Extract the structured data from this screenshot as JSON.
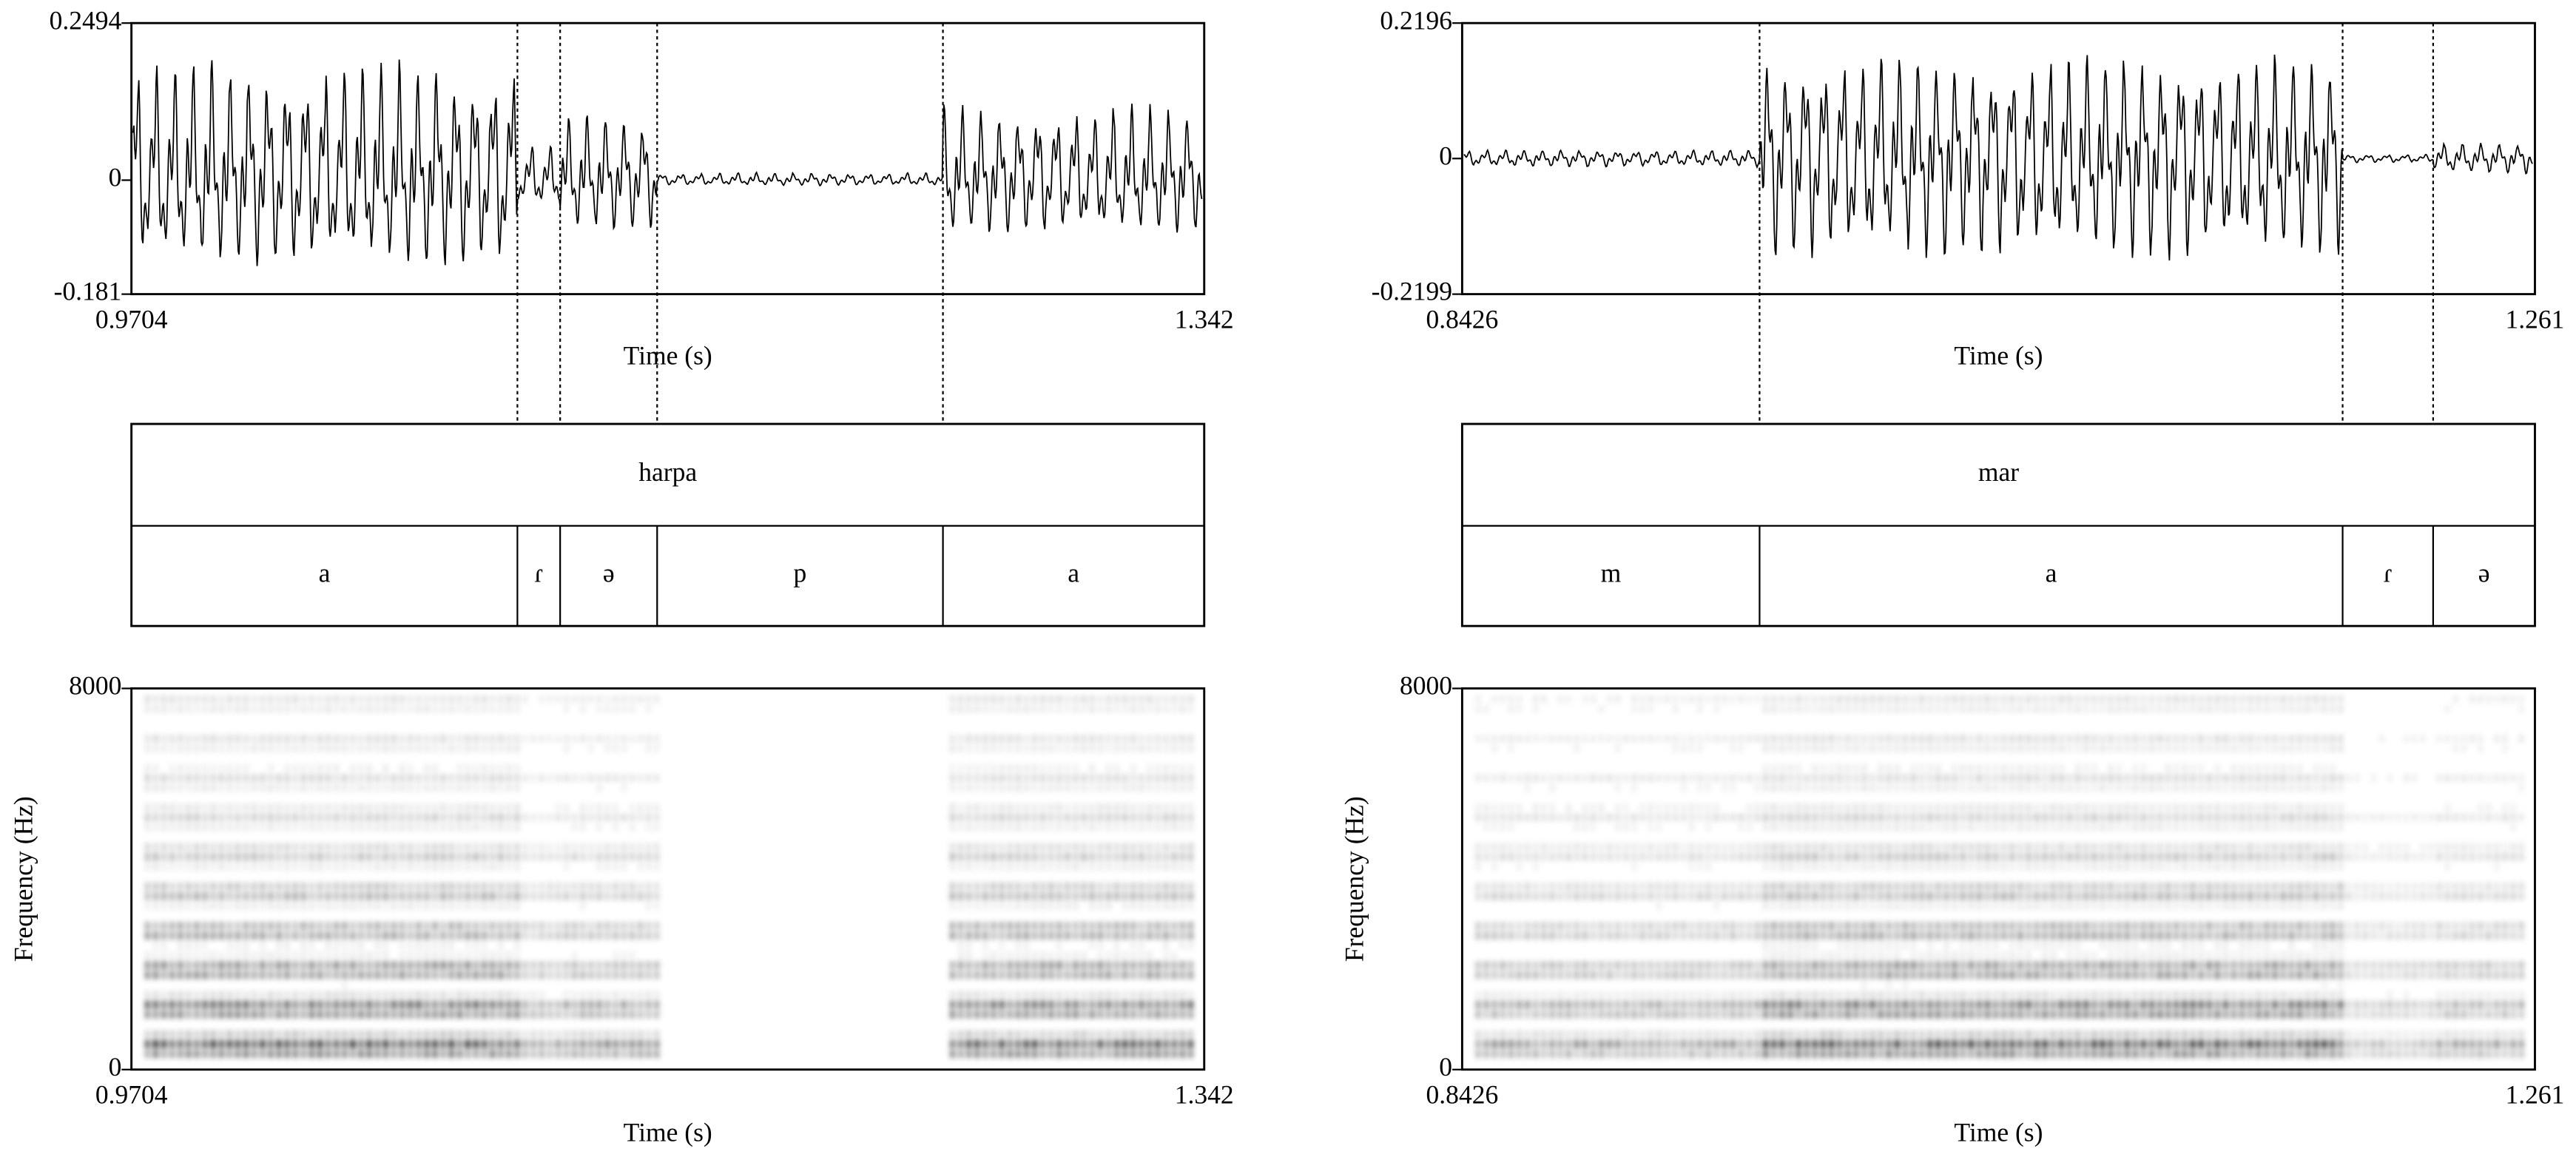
{
  "chart_data": [
    {
      "type": "waveform",
      "xlabel": "Time (s)",
      "xlim": [
        0.9704,
        1.342
      ],
      "xticks": [
        0.9704,
        1.342
      ],
      "ylim": [
        -0.181,
        0.2494
      ],
      "yticks": [
        -0.181,
        0,
        0.2494
      ],
      "boundaries": [
        1.1041,
        1.1189,
        1.1525,
        1.2515
      ],
      "tiers": [
        {
          "labels": [
            "harpa"
          ]
        },
        {
          "labels": [
            "a",
            "ɾ",
            "ə",
            "p",
            "a"
          ]
        }
      ],
      "spectrogram": {
        "ylabel": "Frequency (Hz)",
        "ylim": [
          0,
          8000
        ],
        "yticks": [
          0,
          8000
        ],
        "xlabel": "Time (s)",
        "xticks": [
          0.9704,
          1.342
        ]
      }
    },
    {
      "type": "waveform",
      "xlabel": "Time (s)",
      "xlim": [
        0.8426,
        1.261
      ],
      "xticks": [
        0.8426,
        1.261
      ],
      "ylim": [
        -0.2199,
        0.2196
      ],
      "yticks": [
        -0.2199,
        0,
        0.2196
      ],
      "boundaries": [
        0.9586,
        1.186,
        1.2213
      ],
      "tiers": [
        {
          "labels": [
            "mar"
          ]
        },
        {
          "labels": [
            "m",
            "a",
            "ɾ",
            "ə"
          ]
        }
      ],
      "spectrogram": {
        "ylabel": "Frequency (Hz)",
        "ylim": [
          0,
          8000
        ],
        "yticks": [
          0,
          8000
        ],
        "xlabel": "Time (s)",
        "xticks": [
          0.8426,
          1.261
        ]
      }
    }
  ]
}
